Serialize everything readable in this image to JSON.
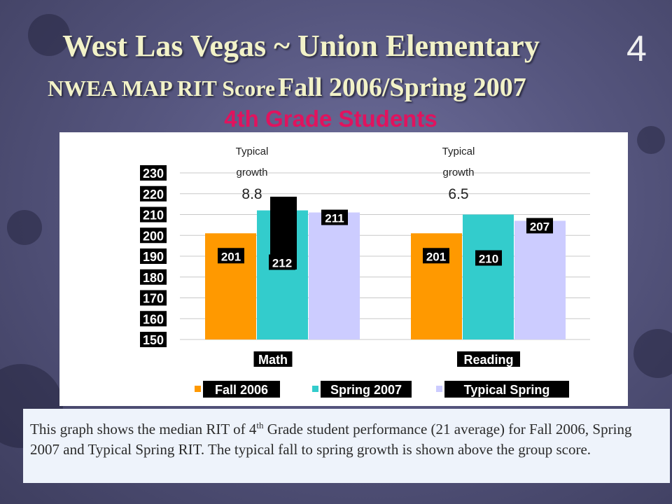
{
  "slide": {
    "title_line1": "West Las Vegas ~ Union Elementary",
    "slide_number": "4",
    "title_line2_part1": "NWEA MAP RIT Score",
    "title_line2_part2": "Fall 2006/Spring 2007",
    "subtitle": "4th Grade Students"
  },
  "caption": {
    "part1": "This graph shows the median RIT of 4",
    "sup": "th",
    "part2": " Grade student performance (21 average) for Fall 2006, Spring 2007 and Typical Spring RIT.  The typical fall to spring growth is shown above the group score."
  },
  "chart_data": {
    "type": "bar",
    "categories": [
      "Math",
      "Reading"
    ],
    "series": [
      {
        "name": "Fall 2006",
        "color": "#ff9900",
        "values": [
          201,
          201
        ]
      },
      {
        "name": "Spring 2007",
        "color": "#33cccc",
        "values": [
          212,
          210
        ]
      },
      {
        "name": "Typical Spring",
        "color": "#ccccff",
        "values": [
          211,
          207
        ]
      }
    ],
    "ylim": [
      150,
      230
    ],
    "y_ticks": [
      "230",
      "220",
      "210",
      "200",
      "190",
      "180",
      "170",
      "160",
      "150"
    ],
    "annotations": [
      {
        "category": "Math",
        "label_line1": "Typical",
        "label_line2": "growth",
        "value": "8.8"
      },
      {
        "category": "Reading",
        "label_line1": "Typical",
        "label_line2": "growth",
        "value": "6.5"
      }
    ],
    "legend_position": "bottom",
    "grid": true
  }
}
